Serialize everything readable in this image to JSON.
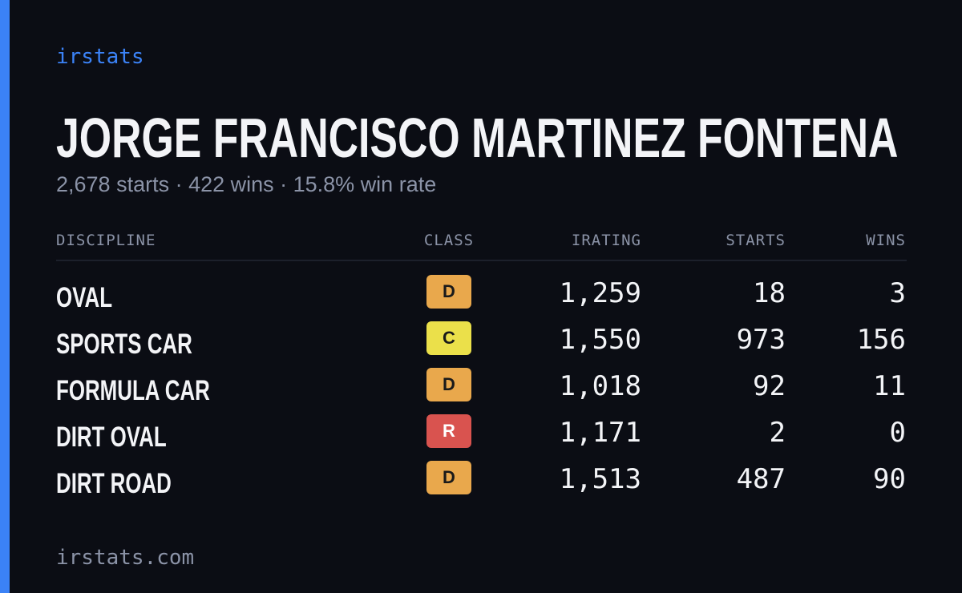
{
  "brand": "irstats",
  "name": "JORGE FRANCISCO MARTINEZ FONTENA",
  "summary": "2,678 starts · 422 wins · 15.8% win rate",
  "table": {
    "headers": [
      "DISCIPLINE",
      "CLASS",
      "IRATING",
      "STARTS",
      "WINS"
    ],
    "rows": [
      {
        "discipline": "OVAL",
        "class": "D",
        "color": "#e9a84c",
        "irating": "1,259",
        "starts": 18,
        "wins": 3
      },
      {
        "discipline": "SPORTS CAR",
        "class": "C",
        "color": "#ebe04a",
        "irating": "1,550",
        "starts": 973,
        "wins": 156
      },
      {
        "discipline": "FORMULA CAR",
        "class": "D",
        "color": "#e9a84c",
        "irating": "1,018",
        "starts": 92,
        "wins": 11
      },
      {
        "discipline": "DIRT OVAL",
        "class": "R",
        "color": "#d9534f",
        "irating": "1,171",
        "starts": 2,
        "wins": 0
      },
      {
        "discipline": "DIRT ROAD",
        "class": "D",
        "color": "#e9a84c",
        "irating": "1,513",
        "starts": 487,
        "wins": 90
      }
    ]
  },
  "footer": "irstats.com"
}
